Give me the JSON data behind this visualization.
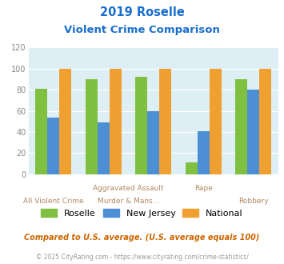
{
  "title_line1": "2019 Roselle",
  "title_line2": "Violent Crime Comparison",
  "categories": [
    "All Violent Crime",
    "Aggravated Assault",
    "Murder & Mans...",
    "Rape",
    "Robbery"
  ],
  "series": {
    "Roselle": [
      81,
      90,
      92,
      11,
      90
    ],
    "New Jersey": [
      54,
      49,
      60,
      41,
      80
    ],
    "National": [
      100,
      100,
      100,
      100,
      100
    ]
  },
  "colors": {
    "Roselle": "#80c040",
    "New Jersey": "#4d8fd4",
    "National": "#f0a030"
  },
  "ylim": [
    0,
    120
  ],
  "yticks": [
    0,
    20,
    40,
    60,
    80,
    100,
    120
  ],
  "footnote1": "Compared to U.S. average. (U.S. average equals 100)",
  "footnote2": "© 2025 CityRating.com - https://www.cityrating.com/crime-statistics/",
  "title_color": "#1a6ecc",
  "footnote1_color": "#cc6600",
  "footnote2_color": "#999999",
  "plot_bg": "#ddeef5",
  "xlabel_color": "#b08860",
  "ytick_color": "#888888"
}
